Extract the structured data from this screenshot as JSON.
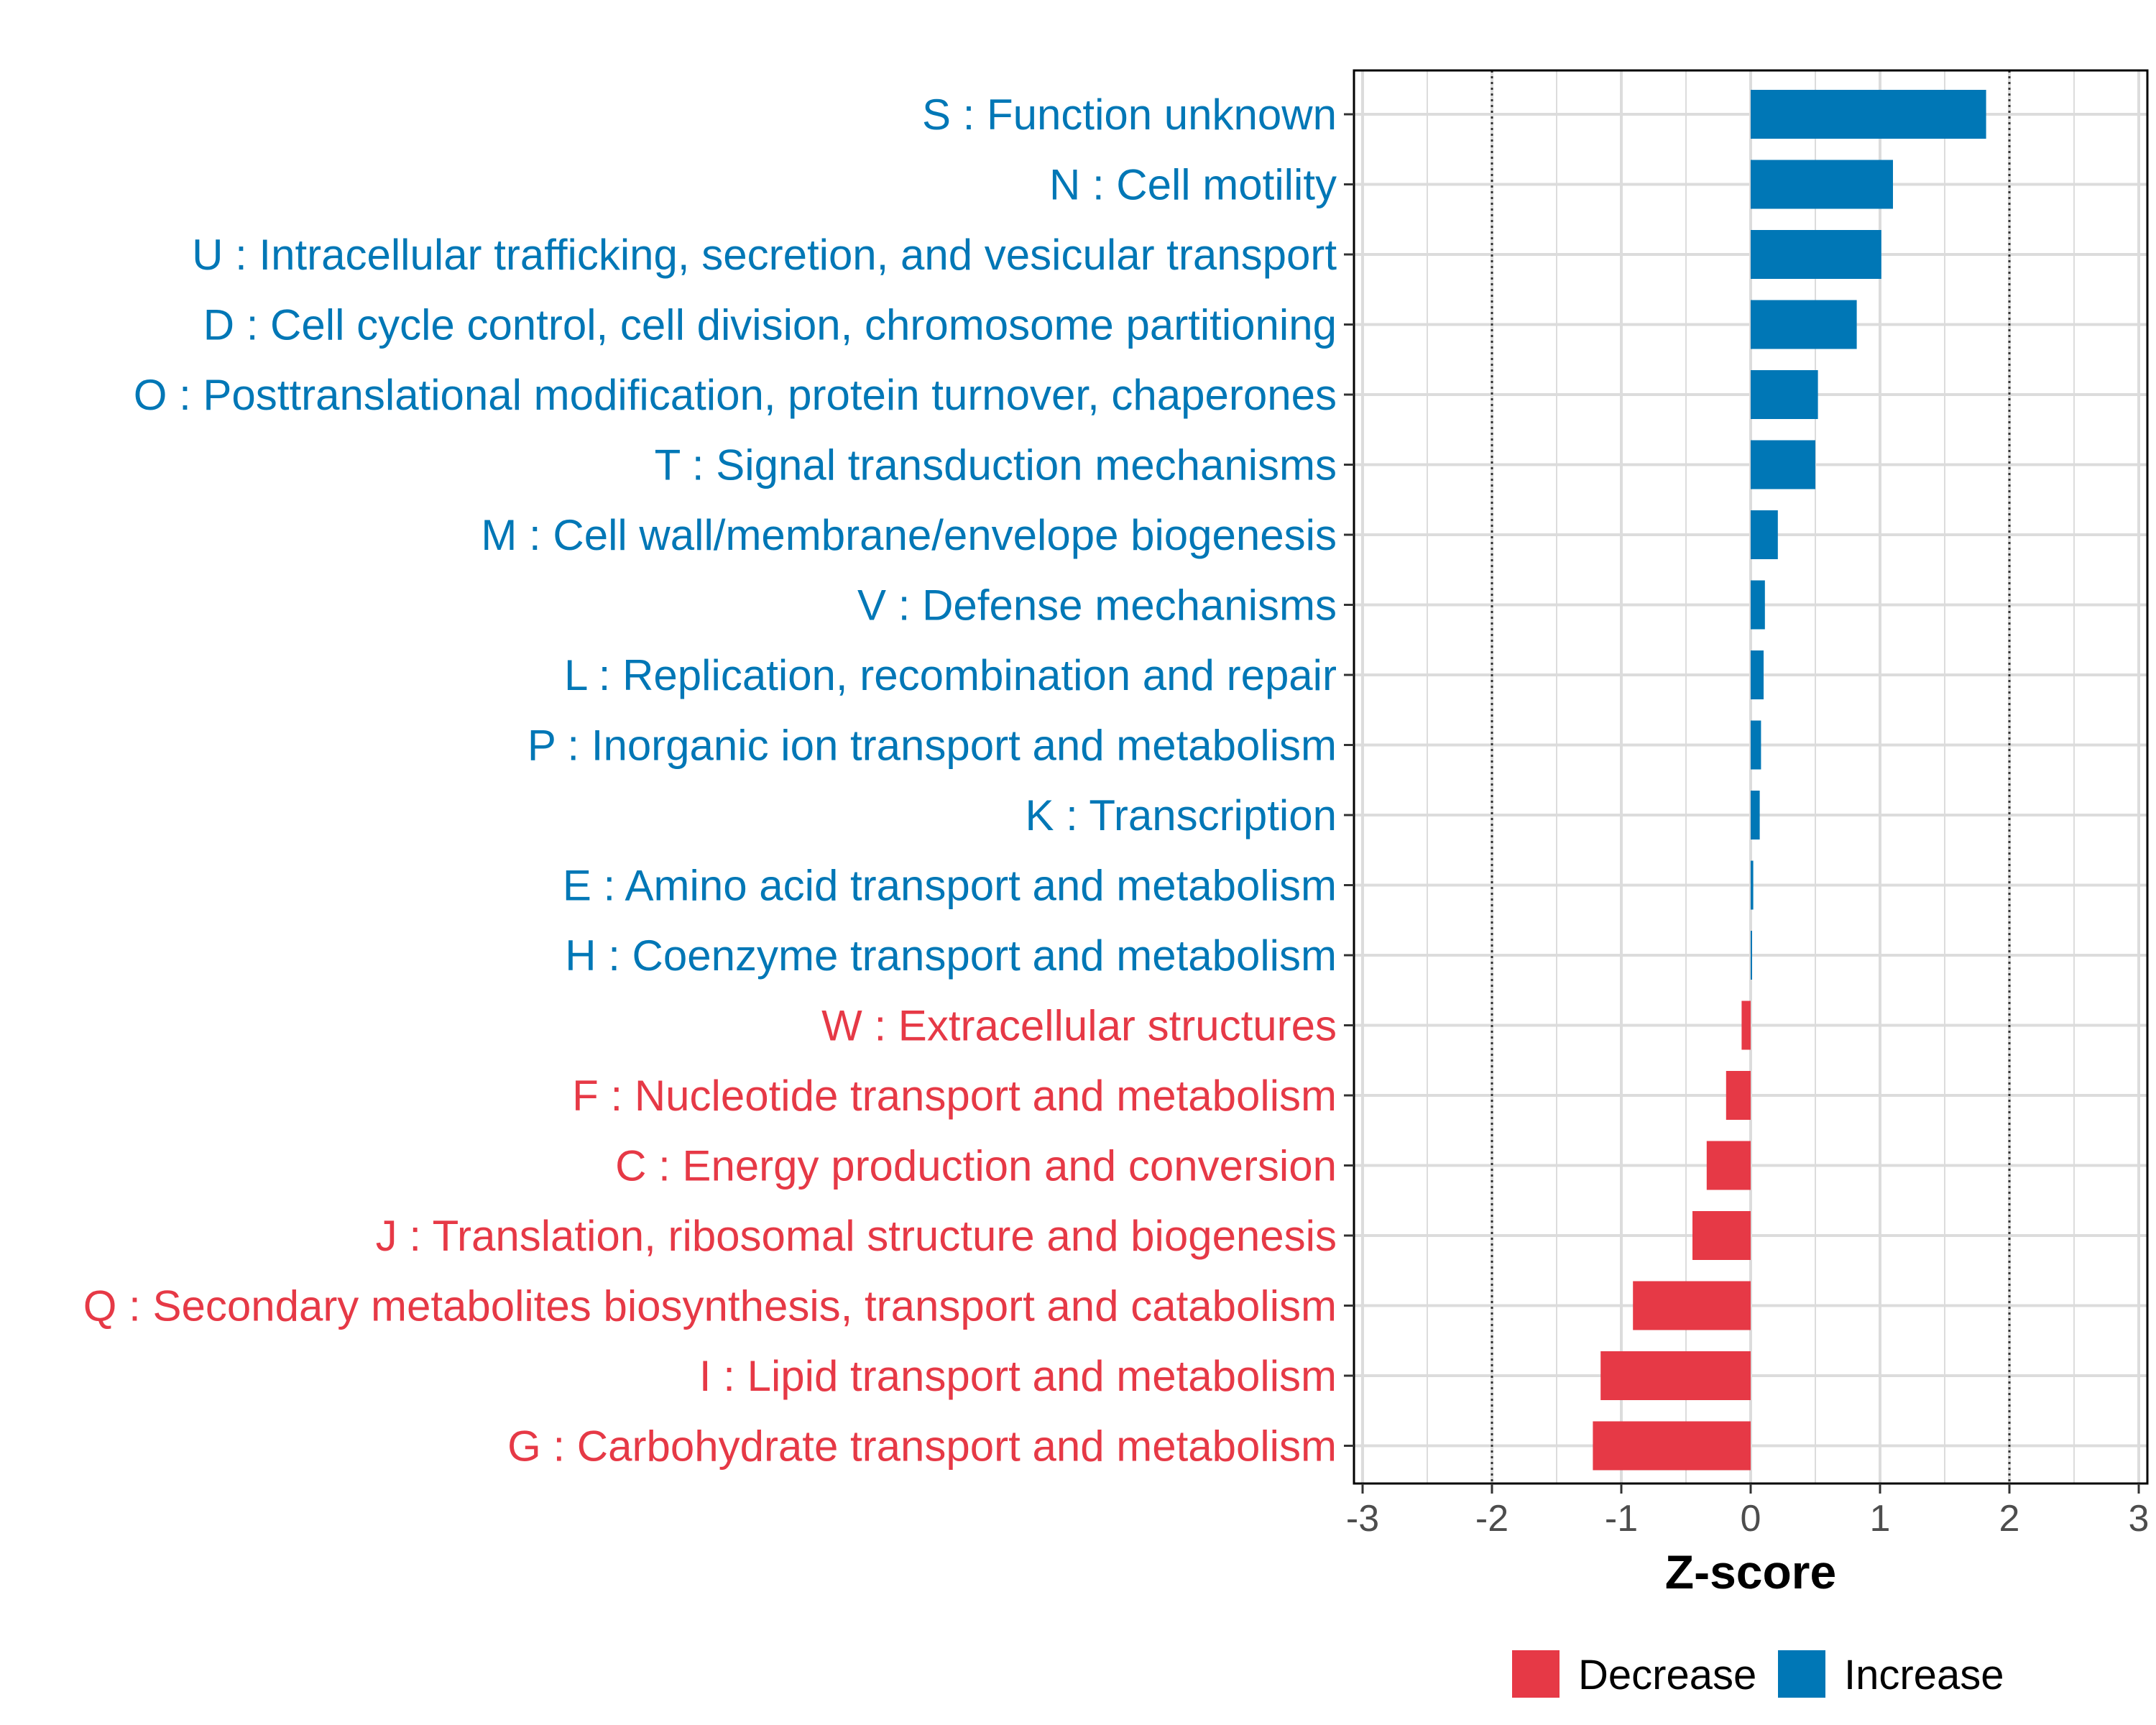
{
  "chart_data": {
    "type": "bar",
    "orientation": "horizontal",
    "xlabel": "Z-score",
    "ylabel": "",
    "xlim": [
      -3,
      3
    ],
    "x_ticks": [
      -3,
      -2,
      -1,
      0,
      1,
      2,
      3
    ],
    "x_tick_labels": [
      "-3",
      "-2",
      "-1",
      "0",
      "1",
      "2",
      "3"
    ],
    "reference_lines": [
      -2,
      2
    ],
    "grid": true,
    "categories": [
      "S : Function unknown",
      "N : Cell motility",
      "U : Intracellular trafficking, secretion, and vesicular transport",
      "D : Cell cycle control, cell division, chromosome partitioning",
      "O : Posttranslational modification, protein turnover, chaperones",
      "T : Signal transduction mechanisms",
      "M : Cell wall/membrane/envelope biogenesis",
      "V : Defense mechanisms",
      "L : Replication, recombination and repair",
      "P : Inorganic ion transport and metabolism",
      "K : Transcription",
      "E : Amino acid transport and metabolism",
      "H : Coenzyme transport and metabolism",
      "W : Extracellular structures",
      "F : Nucleotide transport and metabolism",
      "C : Energy production and conversion",
      "J : Translation, ribosomal structure and biogenesis",
      "Q : Secondary metabolites biosynthesis, transport and catabolism",
      "I : Lipid transport and metabolism",
      "G : Carbohydrate transport and metabolism"
    ],
    "values": [
      1.82,
      1.1,
      1.01,
      0.82,
      0.52,
      0.5,
      0.21,
      0.11,
      0.1,
      0.08,
      0.07,
      0.02,
      0.01,
      -0.07,
      -0.19,
      -0.34,
      -0.45,
      -0.91,
      -1.16,
      -1.22
    ],
    "groups": [
      "Increase",
      "Increase",
      "Increase",
      "Increase",
      "Increase",
      "Increase",
      "Increase",
      "Increase",
      "Increase",
      "Increase",
      "Increase",
      "Increase",
      "Increase",
      "Decrease",
      "Decrease",
      "Decrease",
      "Decrease",
      "Decrease",
      "Decrease",
      "Decrease"
    ],
    "legend": {
      "position": "bottom",
      "entries": [
        {
          "name": "Decrease",
          "color": "#E63946"
        },
        {
          "name": "Increase",
          "color": "#0077B6"
        }
      ]
    }
  }
}
